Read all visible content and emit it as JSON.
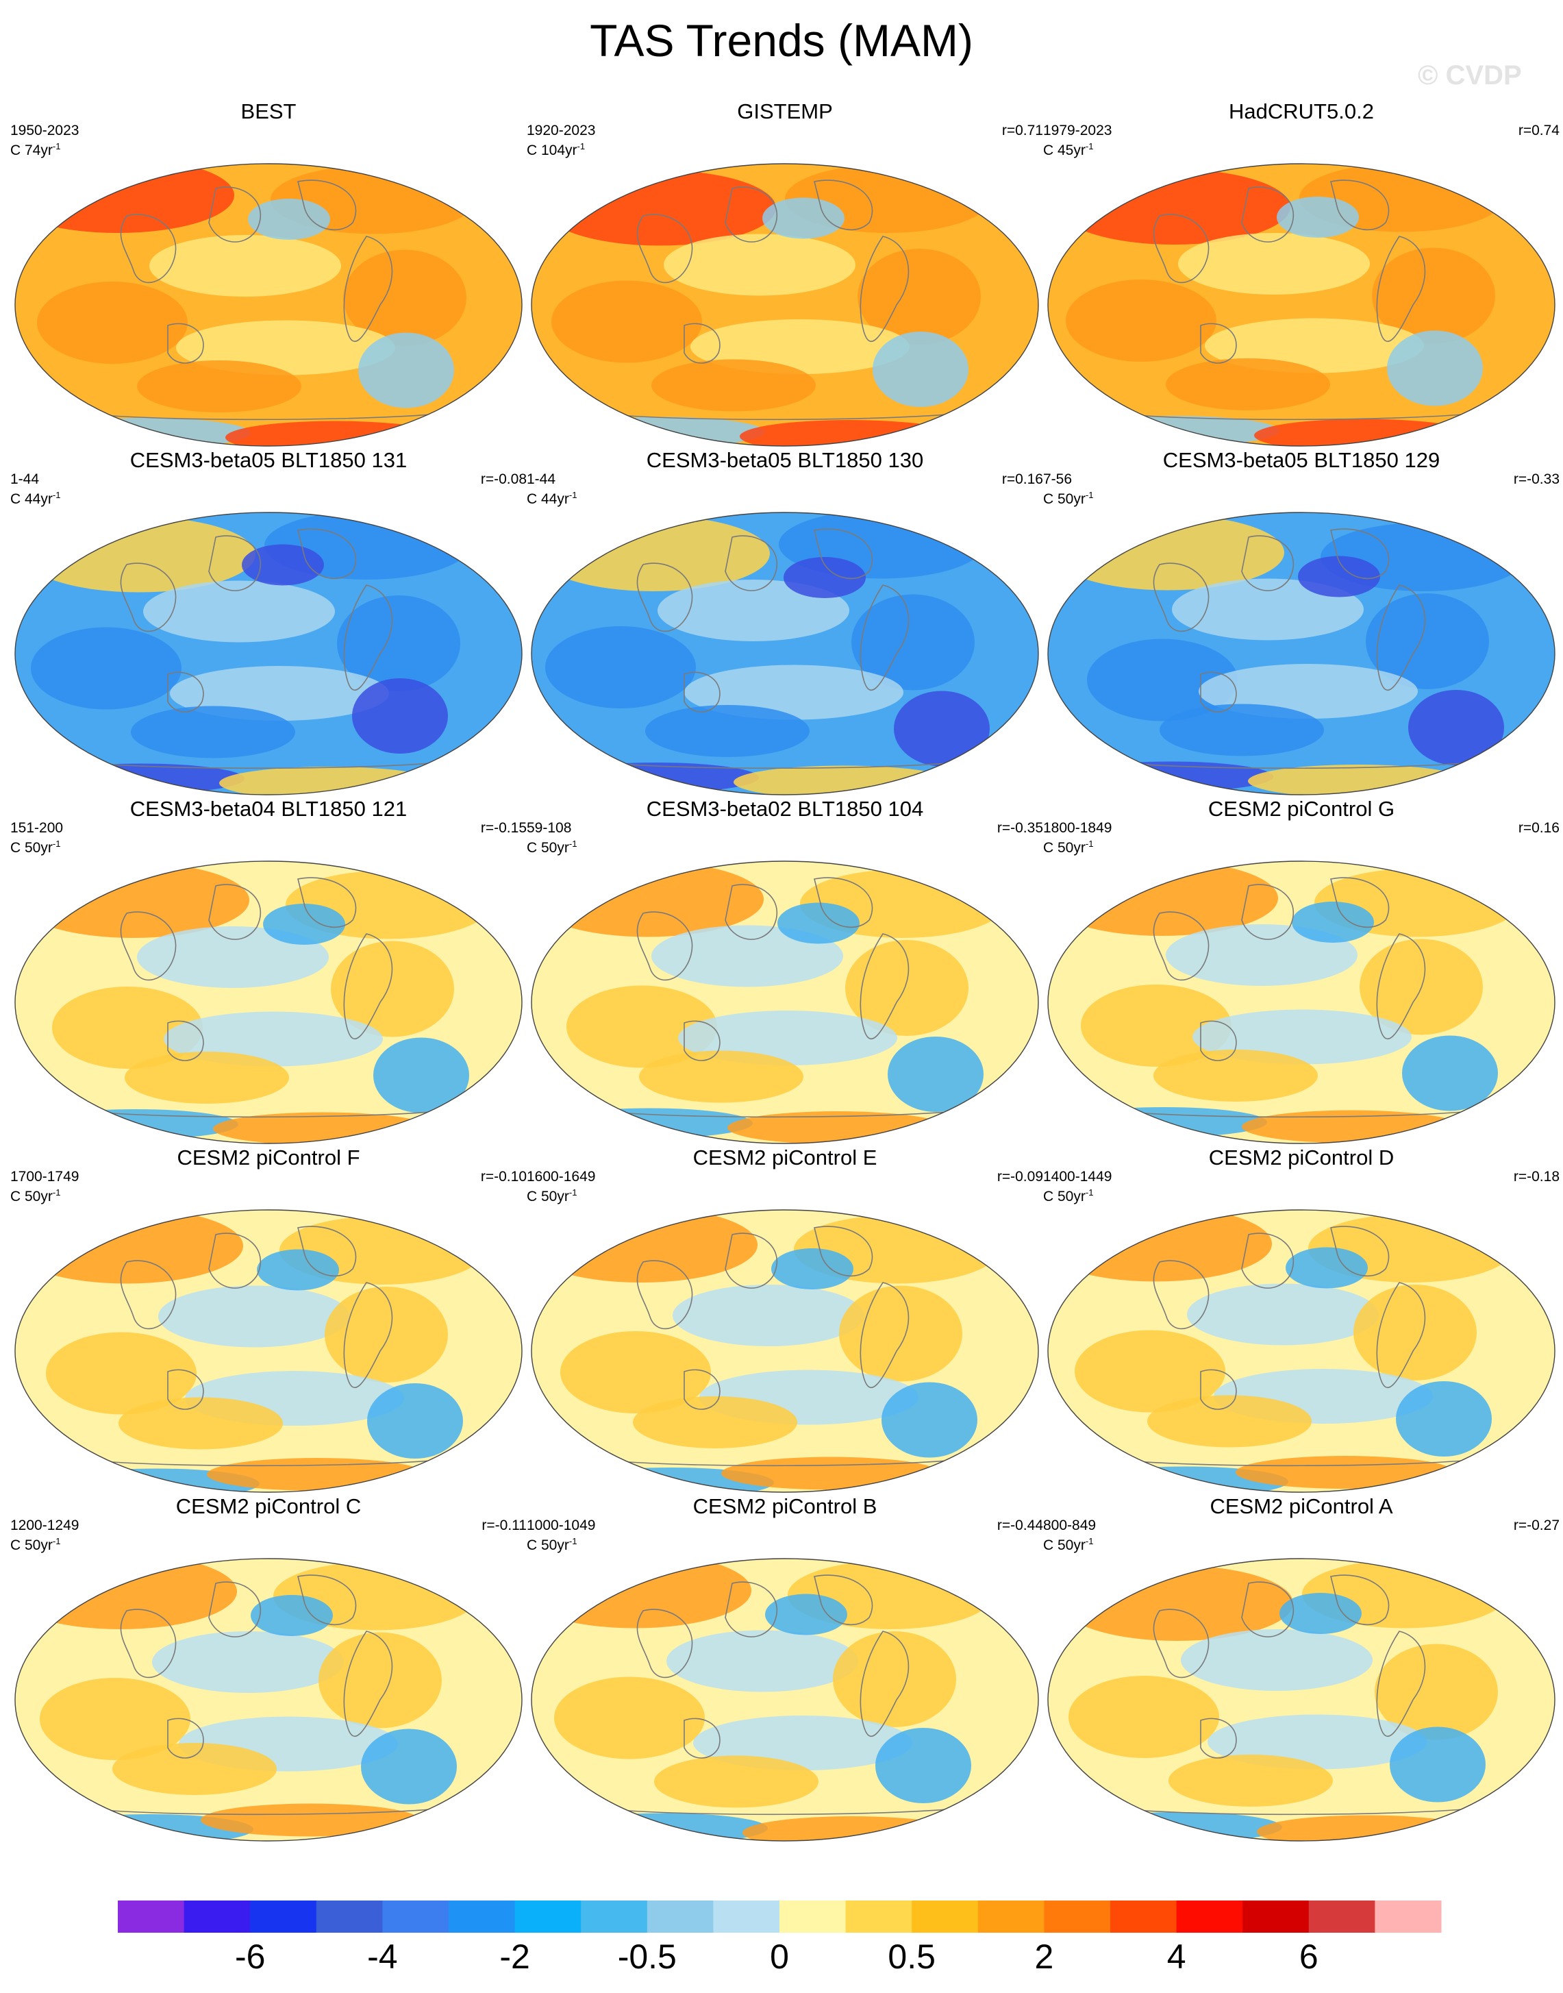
{
  "title": "TAS Trends (MAM)",
  "watermark": "© CVDP",
  "panels": [
    {
      "title": "BEST",
      "period": "1950-2023",
      "units_base": "C 74yr",
      "units_exp": "-1",
      "corr": "",
      "regime": "warm_obs"
    },
    {
      "title": "GISTEMP",
      "period": "1920-2023",
      "units_base": "C 104yr",
      "units_exp": "-1",
      "corr": "r=0.71",
      "regime": "warm_obs"
    },
    {
      "title": "HadCRUT5.0.2",
      "period": "1979-2023",
      "units_base": "C 45yr",
      "units_exp": "-1",
      "corr": "r=0.74",
      "regime": "warm_obs"
    },
    {
      "title": "CESM3-beta05 BLT1850 131",
      "period": "1-44",
      "units_base": "C 44yr",
      "units_exp": "-1",
      "corr": "r=-0.08",
      "regime": "cold_model"
    },
    {
      "title": "CESM3-beta05 BLT1850 130",
      "period": "1-44",
      "units_base": "C 44yr",
      "units_exp": "-1",
      "corr": "r=0.16",
      "regime": "cold_model"
    },
    {
      "title": "CESM3-beta05 BLT1850 129",
      "period": "7-56",
      "units_base": "C 50yr",
      "units_exp": "-1",
      "corr": "r=-0.33",
      "regime": "cold_model"
    },
    {
      "title": "CESM3-beta04 BLT1850 121",
      "period": "151-200",
      "units_base": "C 50yr",
      "units_exp": "-1",
      "corr": "r=-0.15",
      "regime": "mixed"
    },
    {
      "title": "CESM3-beta02 BLT1850 104",
      "period": "59-108",
      "units_base": "C 50yr",
      "units_exp": "-1",
      "corr": "r=-0.35",
      "regime": "mixed"
    },
    {
      "title": "CESM2 piControl G",
      "period": "1800-1849",
      "units_base": "C 50yr",
      "units_exp": "-1",
      "corr": "r=0.16",
      "regime": "mixed"
    },
    {
      "title": "CESM2 piControl F",
      "period": "1700-1749",
      "units_base": "C 50yr",
      "units_exp": "-1",
      "corr": "r=-0.10",
      "regime": "mixed"
    },
    {
      "title": "CESM2 piControl E",
      "period": "1600-1649",
      "units_base": "C 50yr",
      "units_exp": "-1",
      "corr": "r=-0.09",
      "regime": "mixed"
    },
    {
      "title": "CESM2 piControl D",
      "period": "1400-1449",
      "units_base": "C 50yr",
      "units_exp": "-1",
      "corr": "r=-0.18",
      "regime": "mixed"
    },
    {
      "title": "CESM2 piControl C",
      "period": "1200-1249",
      "units_base": "C 50yr",
      "units_exp": "-1",
      "corr": "r=-0.11",
      "regime": "mixed"
    },
    {
      "title": "CESM2 piControl B",
      "period": "1000-1049",
      "units_base": "C 50yr",
      "units_exp": "-1",
      "corr": "r=-0.44",
      "regime": "mixed"
    },
    {
      "title": "CESM2 piControl A",
      "period": "800-849",
      "units_base": "C 50yr",
      "units_exp": "-1",
      "corr": "r=-0.27",
      "regime": "mixed"
    }
  ],
  "colorbar": {
    "colors": [
      "#8a2be2",
      "#3a1cf0",
      "#1735f0",
      "#3a5fd6",
      "#3c7ef0",
      "#1f93f5",
      "#0bb0fa",
      "#46b9ee",
      "#8fcbea",
      "#b9dff2",
      "#fff6a6",
      "#ffd84d",
      "#ffbf1a",
      "#ff9e12",
      "#ff7a0a",
      "#ff4a05",
      "#ff0c00",
      "#d40000",
      "#d63a3a",
      "#ffb3b3"
    ],
    "labels": [
      "-6",
      "-4",
      "-2",
      "-0.5",
      "0",
      "0.5",
      "2",
      "4",
      "6"
    ]
  },
  "regime_colors": {
    "warm_obs": {
      "base": "#ffb62e",
      "deep": "#ff9a1a",
      "hot": "#ff4410",
      "cool": "#ffe77a",
      "cold": "#8fcbea"
    },
    "cold_model": {
      "base": "#4aa8f0",
      "deep": "#2f8ef0",
      "hot": "#ffd34a",
      "cool": "#a9d6f0",
      "cold": "#3a4fe0"
    },
    "mixed": {
      "base": "#fff3a8",
      "deep": "#ffcc40",
      "hot": "#ff9e20",
      "cool": "#b9dff2",
      "cold": "#46b0f0"
    }
  },
  "coast_color": "#7a7a7a"
}
